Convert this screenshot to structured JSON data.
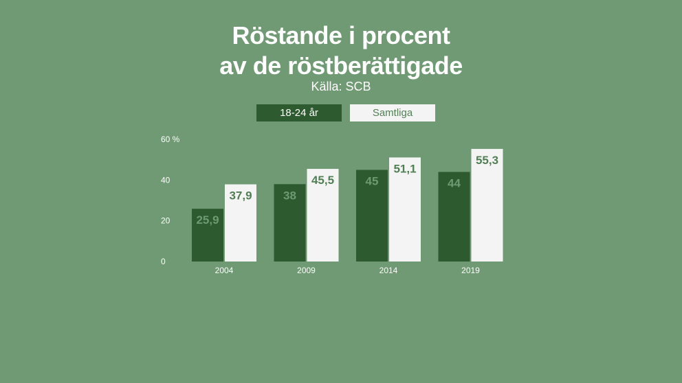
{
  "title_lines": [
    "Röstande i procent",
    "av de röstberättigade"
  ],
  "source": "Källa: SCB",
  "colors": {
    "background": "#6f9a73",
    "series_young": "#2d5a2e",
    "series_all": "#f4f4f4",
    "label_on_light": "#4f7f53",
    "label_on_dark": "#6f9a73"
  },
  "chart_data": {
    "type": "bar",
    "title": "Röstande i procent av de röstberättigade",
    "categories": [
      "2004",
      "2009",
      "2014",
      "2019"
    ],
    "series": [
      {
        "name": "18-24 år",
        "values": [
          25.9,
          38,
          45,
          44
        ],
        "labels": [
          "25,9",
          "38",
          "45",
          "44"
        ]
      },
      {
        "name": "Samtliga",
        "values": [
          37.9,
          45.5,
          51.1,
          55.3
        ],
        "labels": [
          "37,9",
          "45,5",
          "51,1",
          "55,3"
        ]
      }
    ],
    "y_ticks": [
      {
        "value": 0,
        "label": "0"
      },
      {
        "value": 20,
        "label": "20"
      },
      {
        "value": 40,
        "label": "40"
      },
      {
        "value": 60,
        "label": "60 %"
      }
    ],
    "ylim": [
      0,
      60
    ],
    "grid": false,
    "legend": "top-center"
  }
}
